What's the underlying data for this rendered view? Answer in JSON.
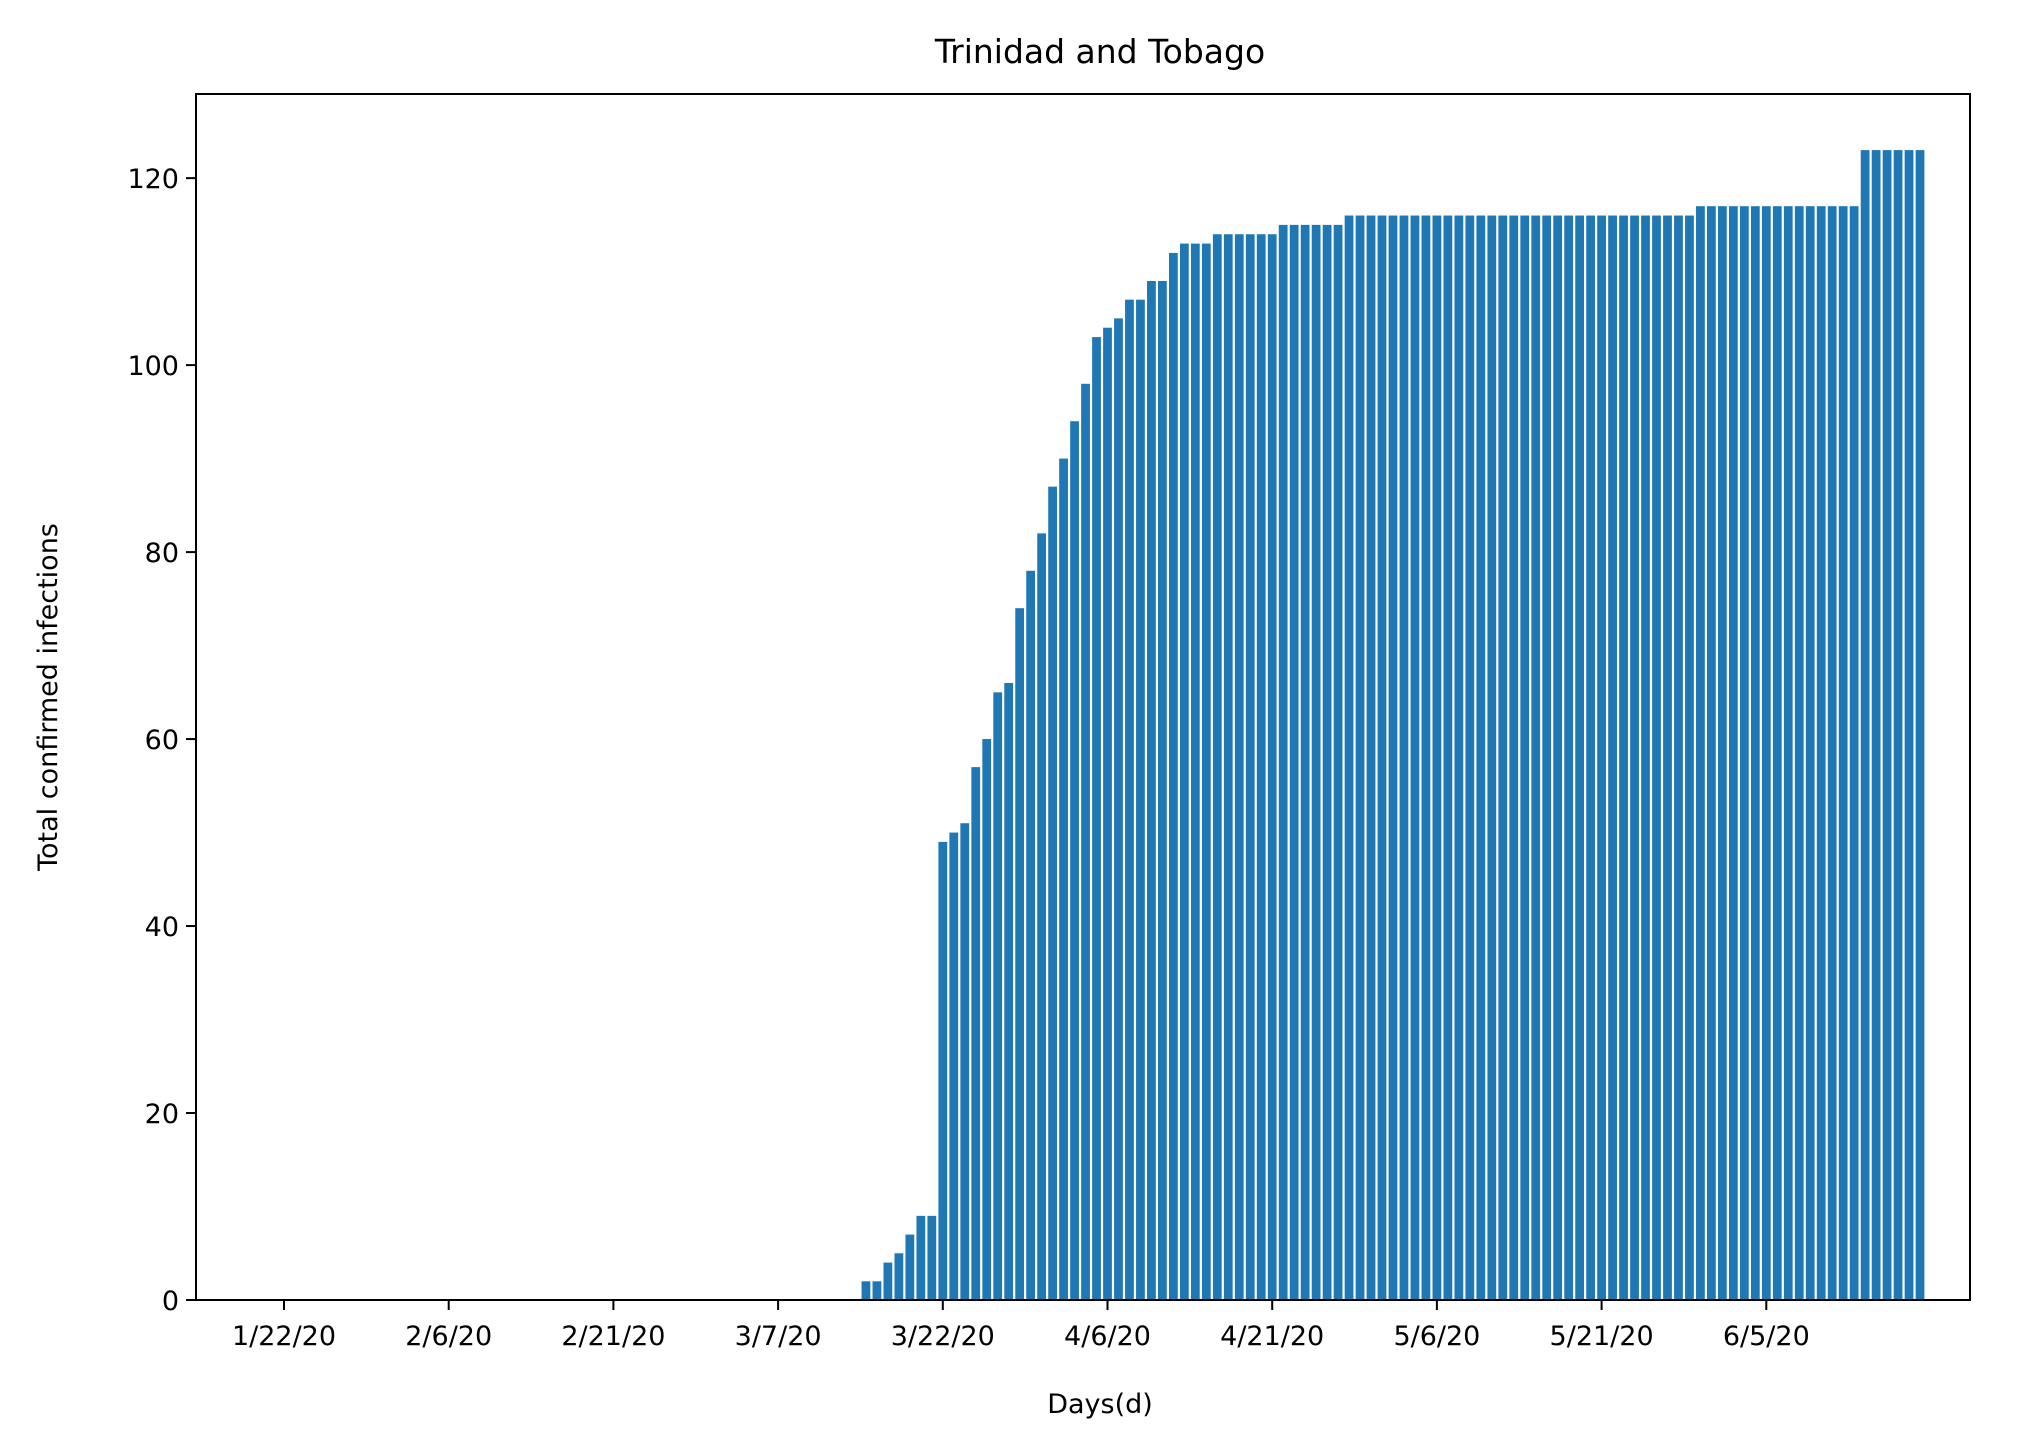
{
  "chart_data": {
    "type": "bar",
    "title": "Trinidad and Tobago",
    "xlabel": "Days(d)",
    "ylabel": "Total confirmed infections",
    "ylim": [
      0,
      129
    ],
    "yticks": [
      0,
      20,
      40,
      60,
      80,
      100,
      120
    ],
    "xticks": [
      "1/22/20",
      "2/6/20",
      "2/21/20",
      "3/7/20",
      "3/22/20",
      "4/6/20",
      "4/21/20",
      "5/6/20",
      "5/21/20",
      "6/5/20"
    ],
    "bar_color": "#1f77b4",
    "grid": false,
    "categories": [
      "1/22/20",
      "1/23/20",
      "1/24/20",
      "1/25/20",
      "1/26/20",
      "1/27/20",
      "1/28/20",
      "1/29/20",
      "1/30/20",
      "1/31/20",
      "2/1/20",
      "2/2/20",
      "2/3/20",
      "2/4/20",
      "2/5/20",
      "2/6/20",
      "2/7/20",
      "2/8/20",
      "2/9/20",
      "2/10/20",
      "2/11/20",
      "2/12/20",
      "2/13/20",
      "2/14/20",
      "2/15/20",
      "2/16/20",
      "2/17/20",
      "2/18/20",
      "2/19/20",
      "2/20/20",
      "2/21/20",
      "2/22/20",
      "2/23/20",
      "2/24/20",
      "2/25/20",
      "2/26/20",
      "2/27/20",
      "2/28/20",
      "2/29/20",
      "3/1/20",
      "3/2/20",
      "3/3/20",
      "3/4/20",
      "3/5/20",
      "3/6/20",
      "3/7/20",
      "3/8/20",
      "3/9/20",
      "3/10/20",
      "3/11/20",
      "3/12/20",
      "3/13/20",
      "3/14/20",
      "3/15/20",
      "3/16/20",
      "3/17/20",
      "3/18/20",
      "3/19/20",
      "3/20/20",
      "3/21/20",
      "3/22/20",
      "3/23/20",
      "3/24/20",
      "3/25/20",
      "3/26/20",
      "3/27/20",
      "3/28/20",
      "3/29/20",
      "3/30/20",
      "3/31/20",
      "4/1/20",
      "4/2/20",
      "4/3/20",
      "4/4/20",
      "4/5/20",
      "4/6/20",
      "4/7/20",
      "4/8/20",
      "4/9/20",
      "4/10/20",
      "4/11/20",
      "4/12/20",
      "4/13/20",
      "4/14/20",
      "4/15/20",
      "4/16/20",
      "4/17/20",
      "4/18/20",
      "4/19/20",
      "4/20/20",
      "4/21/20",
      "4/22/20",
      "4/23/20",
      "4/24/20",
      "4/25/20",
      "4/26/20",
      "4/27/20",
      "4/28/20",
      "4/29/20",
      "4/30/20",
      "5/1/20",
      "5/2/20",
      "5/3/20",
      "5/4/20",
      "5/5/20",
      "5/6/20",
      "5/7/20",
      "5/8/20",
      "5/9/20",
      "5/10/20",
      "5/11/20",
      "5/12/20",
      "5/13/20",
      "5/14/20",
      "5/15/20",
      "5/16/20",
      "5/17/20",
      "5/18/20",
      "5/19/20",
      "5/20/20",
      "5/21/20",
      "5/22/20",
      "5/23/20",
      "5/24/20",
      "5/25/20",
      "5/26/20",
      "5/27/20",
      "5/28/20",
      "5/29/20",
      "5/30/20",
      "5/31/20",
      "6/1/20",
      "6/2/20",
      "6/3/20",
      "6/4/20",
      "6/5/20",
      "6/6/20",
      "6/7/20",
      "6/8/20",
      "6/9/20",
      "6/10/20",
      "6/11/20",
      "6/12/20",
      "6/13/20",
      "6/14/20",
      "6/15/20",
      "6/16/20",
      "6/17/20",
      "6/18/20",
      "6/19/20"
    ],
    "values": [
      0,
      0,
      0,
      0,
      0,
      0,
      0,
      0,
      0,
      0,
      0,
      0,
      0,
      0,
      0,
      0,
      0,
      0,
      0,
      0,
      0,
      0,
      0,
      0,
      0,
      0,
      0,
      0,
      0,
      0,
      0,
      0,
      0,
      0,
      0,
      0,
      0,
      0,
      0,
      0,
      0,
      0,
      0,
      0,
      0,
      0,
      0,
      0,
      0,
      0,
      0,
      0,
      0,
      2,
      2,
      4,
      5,
      7,
      9,
      9,
      49,
      50,
      51,
      57,
      60,
      65,
      66,
      74,
      78,
      82,
      87,
      90,
      94,
      98,
      103,
      104,
      105,
      107,
      107,
      109,
      109,
      112,
      113,
      113,
      113,
      114,
      114,
      114,
      114,
      114,
      114,
      115,
      115,
      115,
      115,
      115,
      115,
      116,
      116,
      116,
      116,
      116,
      116,
      116,
      116,
      116,
      116,
      116,
      116,
      116,
      116,
      116,
      116,
      116,
      116,
      116,
      116,
      116,
      116,
      116,
      116,
      116,
      116,
      116,
      116,
      116,
      116,
      116,
      116,
      117,
      117,
      117,
      117,
      117,
      117,
      117,
      117,
      117,
      117,
      117,
      117,
      117,
      117,
      117,
      123,
      123,
      123,
      123,
      123,
      123
    ]
  }
}
